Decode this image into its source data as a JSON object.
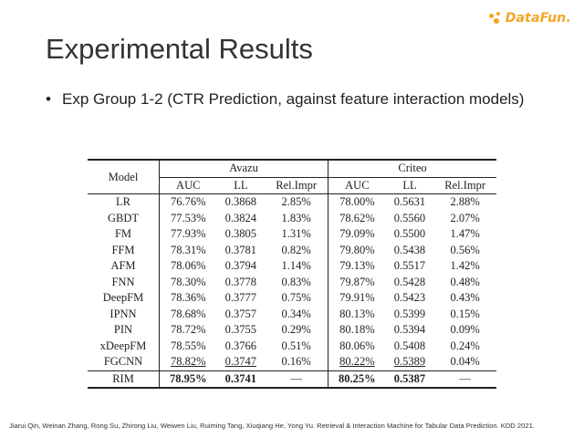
{
  "logo": {
    "text": "DataFun."
  },
  "slide": {
    "title": "Experimental Results",
    "bullet": "Exp Group 1-2 (CTR Prediction, against feature interaction models)"
  },
  "table": {
    "model_header": "Model",
    "groups": [
      "Avazu",
      "Criteo"
    ],
    "subheaders": [
      "AUC",
      "LL",
      "Rel.Impr",
      "AUC",
      "LL",
      "Rel.Impr"
    ],
    "rows": [
      [
        "LR",
        "76.76%",
        "0.3868",
        "2.85%",
        "78.00%",
        "0.5631",
        "2.88%"
      ],
      [
        "GBDT",
        "77.53%",
        "0.3824",
        "1.83%",
        "78.62%",
        "0.5560",
        "2.07%"
      ],
      [
        "FM",
        "77.93%",
        "0.3805",
        "1.31%",
        "79.09%",
        "0.5500",
        "1.47%"
      ],
      [
        "FFM",
        "78.31%",
        "0.3781",
        "0.82%",
        "79.80%",
        "0.5438",
        "0.56%"
      ],
      [
        "AFM",
        "78.06%",
        "0.3794",
        "1.14%",
        "79.13%",
        "0.5517",
        "1.42%"
      ],
      [
        "FNN",
        "78.30%",
        "0.3778",
        "0.83%",
        "79.87%",
        "0.5428",
        "0.48%"
      ],
      [
        "DeepFM",
        "78.36%",
        "0.3777",
        "0.75%",
        "79.91%",
        "0.5423",
        "0.43%"
      ],
      [
        "IPNN",
        "78.68%",
        "0.3757",
        "0.34%",
        "80.13%",
        "0.5399",
        "0.15%"
      ],
      [
        "PIN",
        "78.72%",
        "0.3755",
        "0.29%",
        "80.18%",
        "0.5394",
        "0.09%"
      ],
      [
        "xDeepFM",
        "78.55%",
        "0.3766",
        "0.51%",
        "80.06%",
        "0.5408",
        "0.24%"
      ],
      [
        "FGCNN",
        "78.82%",
        "0.3747",
        "0.16%",
        "80.22%",
        "0.5389",
        "0.04%"
      ]
    ],
    "final_row": [
      "RIM",
      "78.95%",
      "0.3741",
      "—",
      "80.25%",
      "0.5387",
      "—"
    ]
  },
  "footer": "Jiarui Qin, Weinan Zhang, Rong Su, Zhirong Liu, Weiwen Liu, Ruiming Tang, Xiuqiang He, Yong Yu. Retrieval & Interaction Machine for Tabular Data Prediction. KDD 2021."
}
